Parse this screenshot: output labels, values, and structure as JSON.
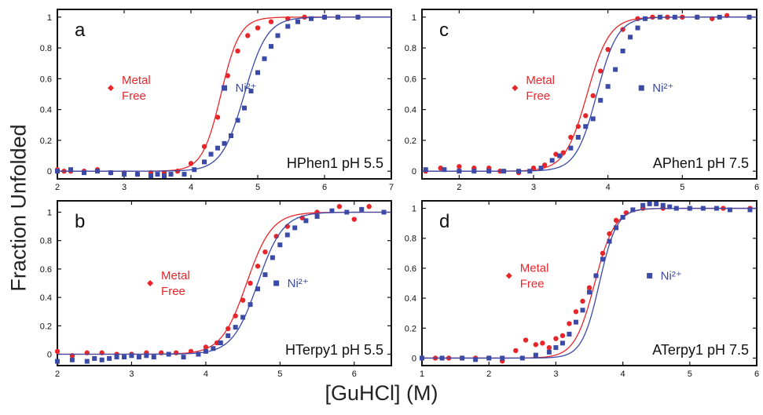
{
  "figure": {
    "ylabel": "Fraction Unfolded",
    "xlabel": "[GuHCl] (M)"
  },
  "colors": {
    "metal_free": "#e8262a",
    "ni": "#3a4aa6"
  },
  "chart_data": [
    {
      "type": "scatter",
      "panel": "a",
      "label": "HPhen1 pH 5.5",
      "xlim": [
        2,
        7
      ],
      "ylim": [
        -0.05,
        1.05
      ],
      "xticks": [
        2,
        3,
        4,
        5,
        6,
        7
      ],
      "yticks": [
        0,
        0.2,
        0.4,
        0.6,
        0.8,
        1
      ],
      "annotations": [
        {
          "series": "metal_free",
          "lines": [
            "Metal",
            "Free"
          ],
          "x": 2.8,
          "y": 0.54
        },
        {
          "series": "ni",
          "lines": [
            "Ni²⁺"
          ],
          "x": 4.5,
          "y": 0.54
        }
      ],
      "series": [
        {
          "key": "metal_free",
          "marker": "circle",
          "fit": {
            "midpoint": 4.45,
            "slope": 0.14
          },
          "points": [
            [
              2.0,
              0.01
            ],
            [
              2.1,
              0.0
            ],
            [
              2.2,
              0.0
            ],
            [
              2.4,
              0.0
            ],
            [
              2.6,
              0.01
            ],
            [
              2.8,
              -0.01
            ],
            [
              3.0,
              -0.01
            ],
            [
              3.2,
              -0.02
            ],
            [
              3.4,
              -0.01
            ],
            [
              3.6,
              -0.01
            ],
            [
              3.8,
              0.0
            ],
            [
              4.0,
              0.05
            ],
            [
              4.2,
              0.16
            ],
            [
              4.4,
              0.35
            ],
            [
              4.55,
              0.62
            ],
            [
              4.7,
              0.78
            ],
            [
              4.85,
              0.88
            ],
            [
              5.0,
              0.93
            ],
            [
              5.2,
              0.97
            ],
            [
              5.45,
              0.99
            ],
            [
              5.7,
              1.0
            ],
            [
              6.0,
              1.0
            ],
            [
              6.2,
              1.0
            ],
            [
              6.5,
              1.0
            ]
          ]
        },
        {
          "key": "ni",
          "marker": "square",
          "fit": {
            "midpoint": 4.8,
            "slope": 0.17
          },
          "points": [
            [
              2.0,
              0.0
            ],
            [
              2.2,
              0.01
            ],
            [
              2.4,
              -0.01
            ],
            [
              2.6,
              0.0
            ],
            [
              2.8,
              -0.01
            ],
            [
              3.0,
              -0.02
            ],
            [
              3.2,
              -0.02
            ],
            [
              3.4,
              -0.03
            ],
            [
              3.5,
              -0.02
            ],
            [
              3.6,
              -0.03
            ],
            [
              3.7,
              -0.02
            ],
            [
              3.9,
              -0.02
            ],
            [
              4.05,
              0.01
            ],
            [
              4.2,
              0.06
            ],
            [
              4.3,
              0.11
            ],
            [
              4.4,
              0.15
            ],
            [
              4.5,
              0.18
            ],
            [
              4.6,
              0.23
            ],
            [
              4.7,
              0.33
            ],
            [
              4.8,
              0.41
            ],
            [
              4.9,
              0.52
            ],
            [
              5.0,
              0.64
            ],
            [
              5.1,
              0.73
            ],
            [
              5.2,
              0.81
            ],
            [
              5.3,
              0.88
            ],
            [
              5.45,
              0.94
            ],
            [
              5.6,
              0.97
            ],
            [
              5.8,
              0.99
            ],
            [
              6.0,
              1.0
            ],
            [
              6.2,
              1.0
            ],
            [
              6.5,
              1.0
            ]
          ]
        }
      ]
    },
    {
      "type": "scatter",
      "panel": "c",
      "label": "APhen1 pH 7.5",
      "xlim": [
        1.5,
        6
      ],
      "ylim": [
        -0.05,
        1.05
      ],
      "xticks": [
        2,
        3,
        4,
        5,
        6
      ],
      "yticks": [
        0,
        0.2,
        0.4,
        0.6,
        0.8,
        1
      ],
      "annotations": [
        {
          "series": "metal_free",
          "lines": [
            "Metal",
            "Free"
          ],
          "x": 2.75,
          "y": 0.54
        },
        {
          "series": "ni",
          "lines": [
            "Ni²⁺"
          ],
          "x": 4.45,
          "y": 0.54
        }
      ],
      "series": [
        {
          "key": "metal_free",
          "marker": "circle",
          "fit": {
            "midpoint": 3.72,
            "slope": 0.15
          },
          "points": [
            [
              1.55,
              0.0
            ],
            [
              1.75,
              0.02
            ],
            [
              2.0,
              0.03
            ],
            [
              2.2,
              0.02
            ],
            [
              2.4,
              0.02
            ],
            [
              2.55,
              0.0
            ],
            [
              2.8,
              -0.01
            ],
            [
              3.0,
              0.02
            ],
            [
              3.15,
              0.04
            ],
            [
              3.3,
              0.11
            ],
            [
              3.4,
              0.12
            ],
            [
              3.5,
              0.22
            ],
            [
              3.6,
              0.29
            ],
            [
              3.7,
              0.36
            ],
            [
              3.8,
              0.49
            ],
            [
              3.9,
              0.65
            ],
            [
              4.0,
              0.79
            ],
            [
              4.2,
              0.92
            ],
            [
              4.4,
              0.99
            ],
            [
              4.6,
              1.0
            ],
            [
              4.8,
              1.0
            ],
            [
              5.0,
              1.0
            ],
            [
              5.2,
              1.0
            ],
            [
              5.4,
              0.99
            ],
            [
              5.6,
              1.01
            ],
            [
              5.9,
              1.0
            ]
          ]
        },
        {
          "key": "ni",
          "marker": "square",
          "fit": {
            "midpoint": 3.85,
            "slope": 0.14
          },
          "points": [
            [
              1.55,
              0.01
            ],
            [
              1.8,
              0.01
            ],
            [
              2.0,
              0.0
            ],
            [
              2.2,
              0.0
            ],
            [
              2.4,
              0.0
            ],
            [
              2.6,
              0.0
            ],
            [
              2.8,
              0.0
            ],
            [
              2.95,
              0.0
            ],
            [
              3.1,
              0.02
            ],
            [
              3.25,
              0.07
            ],
            [
              3.35,
              0.1
            ],
            [
              3.5,
              0.15
            ],
            [
              3.6,
              0.22
            ],
            [
              3.7,
              0.29
            ],
            [
              3.8,
              0.34
            ],
            [
              3.9,
              0.46
            ],
            [
              4.0,
              0.55
            ],
            [
              4.1,
              0.66
            ],
            [
              4.2,
              0.78
            ],
            [
              4.3,
              0.87
            ],
            [
              4.4,
              0.93
            ],
            [
              4.5,
              0.99
            ],
            [
              4.7,
              1.0
            ],
            [
              4.9,
              1.0
            ],
            [
              5.2,
              1.0
            ],
            [
              5.5,
              1.0
            ],
            [
              5.9,
              1.0
            ]
          ]
        }
      ]
    },
    {
      "type": "scatter",
      "panel": "b",
      "label": "HTerpy1 pH 5.5",
      "xlim": [
        2,
        6.5
      ],
      "ylim": [
        -0.08,
        1.08
      ],
      "xticks": [
        2,
        3,
        4,
        5,
        6
      ],
      "yticks": [
        0,
        0.2,
        0.4,
        0.6,
        0.8,
        1
      ],
      "annotations": [
        {
          "series": "metal_free",
          "lines": [
            "Metal",
            "Free"
          ],
          "x": 3.25,
          "y": 0.5
        },
        {
          "series": "ni",
          "lines": [
            "Ni²⁺"
          ],
          "x": 4.95,
          "y": 0.5
        }
      ],
      "series": [
        {
          "key": "metal_free",
          "marker": "circle",
          "fit": {
            "midpoint": 4.55,
            "slope": 0.17
          },
          "points": [
            [
              2.0,
              0.02
            ],
            [
              2.2,
              -0.01
            ],
            [
              2.4,
              0.01
            ],
            [
              2.6,
              0.01
            ],
            [
              2.8,
              0.0
            ],
            [
              3.0,
              0.0
            ],
            [
              3.2,
              0.01
            ],
            [
              3.4,
              0.01
            ],
            [
              3.6,
              0.01
            ],
            [
              3.8,
              0.02
            ],
            [
              4.0,
              0.05
            ],
            [
              4.15,
              0.08
            ],
            [
              4.3,
              0.18
            ],
            [
              4.4,
              0.27
            ],
            [
              4.5,
              0.38
            ],
            [
              4.6,
              0.5
            ],
            [
              4.7,
              0.62
            ],
            [
              4.8,
              0.72
            ],
            [
              4.95,
              0.83
            ],
            [
              5.1,
              0.9
            ],
            [
              5.3,
              0.96
            ],
            [
              5.5,
              1.0
            ],
            [
              5.8,
              1.04
            ],
            [
              6.0,
              0.95
            ],
            [
              6.2,
              1.04
            ]
          ]
        },
        {
          "key": "ni",
          "marker": "square",
          "fit": {
            "midpoint": 4.7,
            "slope": 0.17
          },
          "points": [
            [
              2.0,
              -0.05
            ],
            [
              2.2,
              -0.04
            ],
            [
              2.4,
              -0.05
            ],
            [
              2.5,
              -0.03
            ],
            [
              2.6,
              -0.04
            ],
            [
              2.7,
              -0.03
            ],
            [
              2.8,
              -0.02
            ],
            [
              2.9,
              -0.02
            ],
            [
              3.0,
              -0.01
            ],
            [
              3.1,
              -0.02
            ],
            [
              3.2,
              -0.01
            ],
            [
              3.3,
              -0.02
            ],
            [
              3.5,
              0.0
            ],
            [
              3.7,
              -0.02
            ],
            [
              3.9,
              0.0
            ],
            [
              4.0,
              0.02
            ],
            [
              4.1,
              0.04
            ],
            [
              4.2,
              0.08
            ],
            [
              4.3,
              0.13
            ],
            [
              4.4,
              0.19
            ],
            [
              4.5,
              0.26
            ],
            [
              4.6,
              0.35
            ],
            [
              4.7,
              0.46
            ],
            [
              4.8,
              0.56
            ],
            [
              4.9,
              0.68
            ],
            [
              5.0,
              0.77
            ],
            [
              5.1,
              0.84
            ],
            [
              5.2,
              0.89
            ],
            [
              5.35,
              0.94
            ],
            [
              5.5,
              0.97
            ],
            [
              5.7,
              1.01
            ],
            [
              5.9,
              1.0
            ],
            [
              6.1,
              1.02
            ],
            [
              6.4,
              1.0
            ]
          ]
        }
      ]
    },
    {
      "type": "scatter",
      "panel": "d",
      "label": "ATerpy1 pH 7.5",
      "xlim": [
        1,
        6
      ],
      "ylim": [
        -0.05,
        1.05
      ],
      "xticks": [
        1,
        2,
        3,
        4,
        5,
        6
      ],
      "yticks": [
        0,
        0.2,
        0.4,
        0.6,
        0.8,
        1
      ],
      "annotations": [
        {
          "series": "metal_free",
          "lines": [
            "Metal",
            "Free"
          ],
          "x": 2.3,
          "y": 0.55
        },
        {
          "series": "ni",
          "lines": [
            "Ni²⁺"
          ],
          "x": 4.4,
          "y": 0.55
        }
      ],
      "series": [
        {
          "key": "metal_free",
          "marker": "circle",
          "fit": {
            "midpoint": 3.58,
            "slope": 0.15
          },
          "points": [
            [
              1.0,
              0.0
            ],
            [
              1.2,
              0.0
            ],
            [
              1.4,
              0.0
            ],
            [
              1.6,
              0.0
            ],
            [
              1.8,
              0.0
            ],
            [
              2.0,
              0.0
            ],
            [
              2.2,
              -0.02
            ],
            [
              2.4,
              0.05
            ],
            [
              2.55,
              0.12
            ],
            [
              2.7,
              0.09
            ],
            [
              2.8,
              0.1
            ],
            [
              2.9,
              0.07
            ],
            [
              3.0,
              0.13
            ],
            [
              3.1,
              0.15
            ],
            [
              3.2,
              0.23
            ],
            [
              3.3,
              0.31
            ],
            [
              3.4,
              0.38
            ],
            [
              3.5,
              0.47
            ],
            [
              3.6,
              0.55
            ],
            [
              3.7,
              0.7
            ],
            [
              3.8,
              0.83
            ],
            [
              3.9,
              0.92
            ],
            [
              4.05,
              0.97
            ],
            [
              4.3,
              1.0
            ],
            [
              4.6,
              1.0
            ],
            [
              5.0,
              1.0
            ],
            [
              5.5,
              1.0
            ],
            [
              5.9,
              1.0
            ]
          ]
        },
        {
          "key": "ni",
          "marker": "square",
          "fit": {
            "midpoint": 3.65,
            "slope": 0.13
          },
          "points": [
            [
              1.0,
              0.0
            ],
            [
              1.3,
              0.0
            ],
            [
              1.6,
              0.0
            ],
            [
              1.8,
              -0.01
            ],
            [
              2.0,
              0.0
            ],
            [
              2.2,
              0.0
            ],
            [
              2.5,
              0.0
            ],
            [
              2.7,
              0.02
            ],
            [
              2.9,
              0.04
            ],
            [
              3.0,
              0.07
            ],
            [
              3.1,
              0.1
            ],
            [
              3.2,
              0.16
            ],
            [
              3.3,
              0.24
            ],
            [
              3.4,
              0.32
            ],
            [
              3.5,
              0.44
            ],
            [
              3.6,
              0.55
            ],
            [
              3.7,
              0.66
            ],
            [
              3.8,
              0.78
            ],
            [
              3.9,
              0.87
            ],
            [
              4.0,
              0.94
            ],
            [
              4.15,
              0.99
            ],
            [
              4.3,
              1.02
            ],
            [
              4.4,
              1.03
            ],
            [
              4.5,
              1.03
            ],
            [
              4.6,
              1.02
            ],
            [
              4.7,
              1.01
            ],
            [
              4.8,
              1.0
            ],
            [
              5.0,
              1.0
            ],
            [
              5.2,
              1.0
            ],
            [
              5.4,
              1.0
            ],
            [
              5.6,
              0.99
            ],
            [
              5.9,
              0.99
            ]
          ]
        }
      ]
    }
  ]
}
